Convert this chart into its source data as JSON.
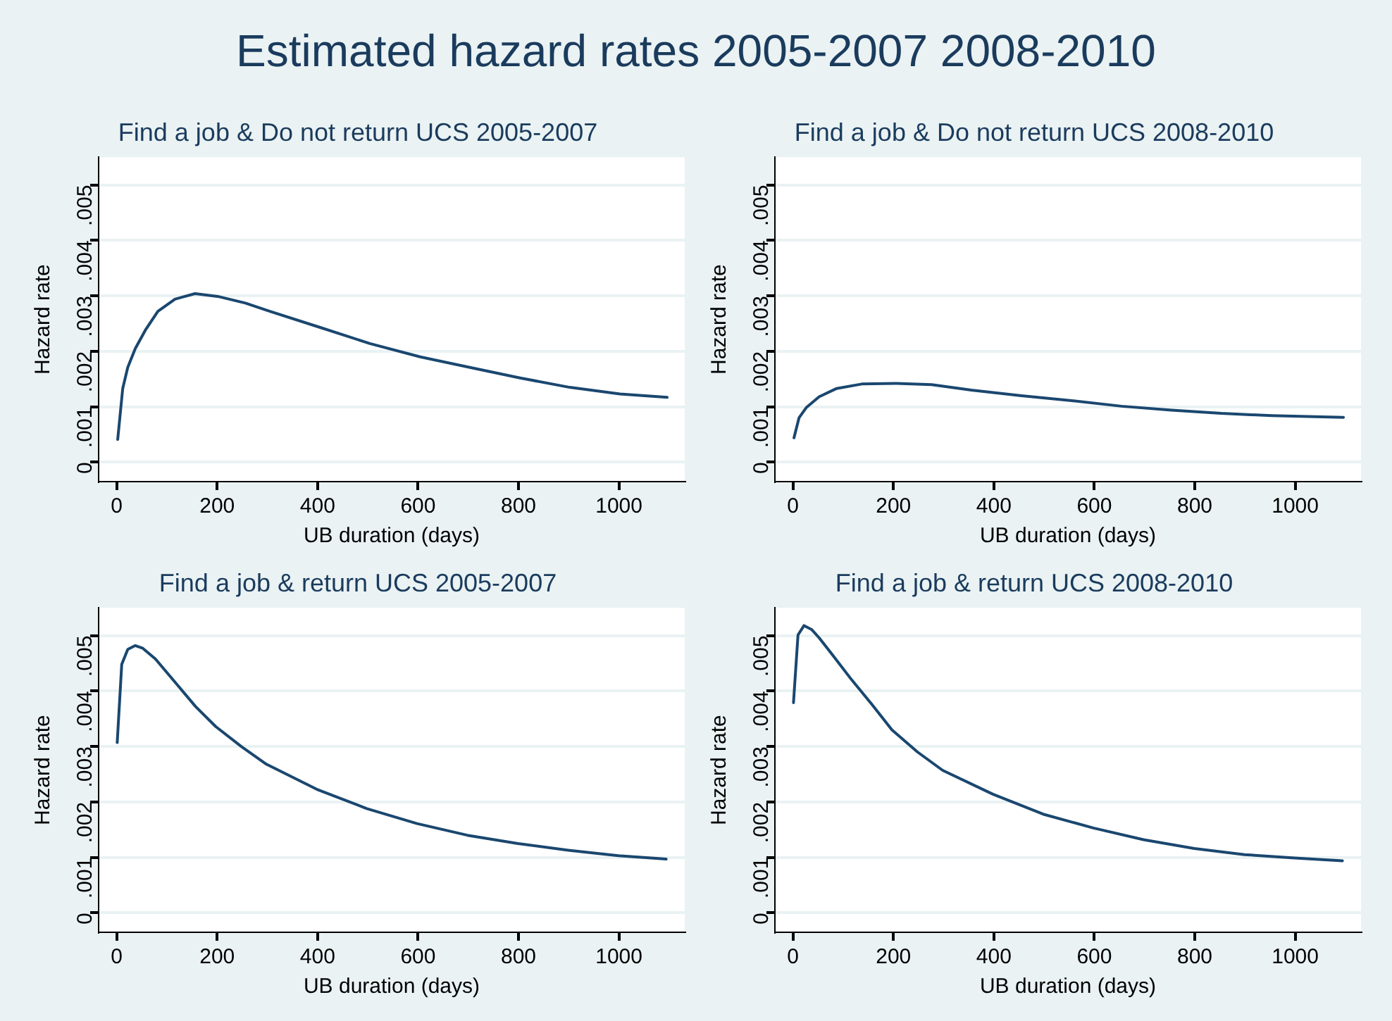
{
  "chart_data": [
    {
      "type": "line",
      "title": "Find a job & Do not return UCS 2005-2007",
      "xlabel": "UB duration (days)",
      "ylabel": "Hazard rate",
      "annotations": [
        "Estimated hazard rates 2005-2007 2008-2010"
      ],
      "series": [
        {
          "color": "#1a476f",
          "x": [
            2,
            12,
            22,
            37,
            57,
            82,
            116,
            156,
            201,
            256,
            305,
            405,
            504,
            604,
            703,
            803,
            902,
            1002,
            1096
          ],
          "values": [
            0.00041,
            0.00133,
            0.00171,
            0.00205,
            0.00238,
            0.00272,
            0.00294,
            0.00304,
            0.00299,
            0.00287,
            0.00272,
            0.00243,
            0.00214,
            0.0019,
            0.00171,
            0.00152,
            0.00135,
            0.00123,
            0.00117
          ]
        }
      ],
      "xlim": [
        -36,
        1131
      ],
      "xticks": [
        0,
        200,
        400,
        600,
        800,
        1000
      ],
      "ylim": [
        -0.00035,
        0.0055
      ],
      "yticks": [
        {
          "value": 0,
          "label": "0"
        },
        {
          "value": 0.001,
          "label": ".001"
        },
        {
          "value": 0.002,
          "label": ".002"
        },
        {
          "value": 0.003,
          "label": ".003"
        },
        {
          "value": 0.004,
          "label": ".004"
        },
        {
          "value": 0.005,
          "label": ".005"
        }
      ],
      "grid": "y",
      "legend": false,
      "marker": "none"
    },
    {
      "type": "line",
      "title": "Find a job & Do not return UCS 2008-2010",
      "xlabel": "UB duration (days)",
      "ylabel": "Hazard rate",
      "series": [
        {
          "color": "#1a476f",
          "x": [
            2,
            12,
            27,
            52,
            87,
            137,
            206,
            276,
            355,
            455,
            555,
            654,
            754,
            853,
            953,
            1096
          ],
          "values": [
            0.00044,
            0.0008,
            0.00099,
            0.00118,
            0.00133,
            0.00141,
            0.00142,
            0.0014,
            0.0013,
            0.0012,
            0.00111,
            0.00101,
            0.00094,
            0.00088,
            0.00084,
            0.00081
          ]
        }
      ],
      "xlim": [
        -36,
        1131
      ],
      "xticks": [
        0,
        200,
        400,
        600,
        800,
        1000
      ],
      "ylim": [
        -0.00035,
        0.0055
      ],
      "yticks": [
        {
          "value": 0,
          "label": "0"
        },
        {
          "value": 0.001,
          "label": ".001"
        },
        {
          "value": 0.002,
          "label": ".002"
        },
        {
          "value": 0.003,
          "label": ".003"
        },
        {
          "value": 0.004,
          "label": ".004"
        },
        {
          "value": 0.005,
          "label": ".005"
        }
      ],
      "grid": "y",
      "legend": false,
      "marker": "none"
    },
    {
      "type": "line",
      "title": "Find a job & return UCS 2005-2007",
      "xlabel": "UB duration (days)",
      "ylabel": "Hazard rate",
      "series": [
        {
          "color": "#1a476f",
          "x": [
            1,
            10,
            22,
            37,
            52,
            77,
            117,
            157,
            197,
            248,
            298,
            398,
            498,
            598,
            698,
            799,
            899,
            999,
            1094
          ],
          "values": [
            0.00307,
            0.00448,
            0.00475,
            0.00482,
            0.00477,
            0.00458,
            0.00415,
            0.00372,
            0.00336,
            0.003,
            0.00268,
            0.00223,
            0.00188,
            0.00161,
            0.0014,
            0.00125,
            0.00113,
            0.00103,
            0.00097
          ]
        }
      ],
      "xlim": [
        -36,
        1131
      ],
      "xticks": [
        0,
        200,
        400,
        600,
        800,
        1000
      ],
      "ylim": [
        -0.00035,
        0.0055
      ],
      "yticks": [
        {
          "value": 0,
          "label": "0"
        },
        {
          "value": 0.001,
          "label": ".001"
        },
        {
          "value": 0.002,
          "label": ".002"
        },
        {
          "value": 0.003,
          "label": ".003"
        },
        {
          "value": 0.004,
          "label": ".004"
        },
        {
          "value": 0.005,
          "label": ".005"
        }
      ],
      "grid": "y",
      "legend": false,
      "marker": "none"
    },
    {
      "type": "line",
      "title": "Find a job & return UCS 2008-2010",
      "xlabel": "UB duration (days)",
      "ylabel": "Hazard rate",
      "series": [
        {
          "color": "#1a476f",
          "x": [
            1,
            10,
            22,
            37,
            52,
            77,
            117,
            157,
            197,
            248,
            298,
            398,
            498,
            598,
            698,
            799,
            899,
            999,
            1094
          ],
          "values": [
            0.00379,
            0.00501,
            0.00518,
            0.00511,
            0.00496,
            0.00467,
            0.0042,
            0.00376,
            0.0033,
            0.0029,
            0.00257,
            0.00214,
            0.00178,
            0.00153,
            0.00132,
            0.00116,
            0.00105,
            0.00099,
            0.00094
          ]
        }
      ],
      "xlim": [
        -36,
        1131
      ],
      "xticks": [
        0,
        200,
        400,
        600,
        800,
        1000
      ],
      "ylim": [
        -0.00035,
        0.0055
      ],
      "yticks": [
        {
          "value": 0,
          "label": "0"
        },
        {
          "value": 0.001,
          "label": ".001"
        },
        {
          "value": 0.002,
          "label": ".002"
        },
        {
          "value": 0.003,
          "label": ".003"
        },
        {
          "value": 0.004,
          "label": ".004"
        },
        {
          "value": 0.005,
          "label": ".005"
        }
      ],
      "grid": "y",
      "legend": false,
      "marker": "none"
    }
  ]
}
